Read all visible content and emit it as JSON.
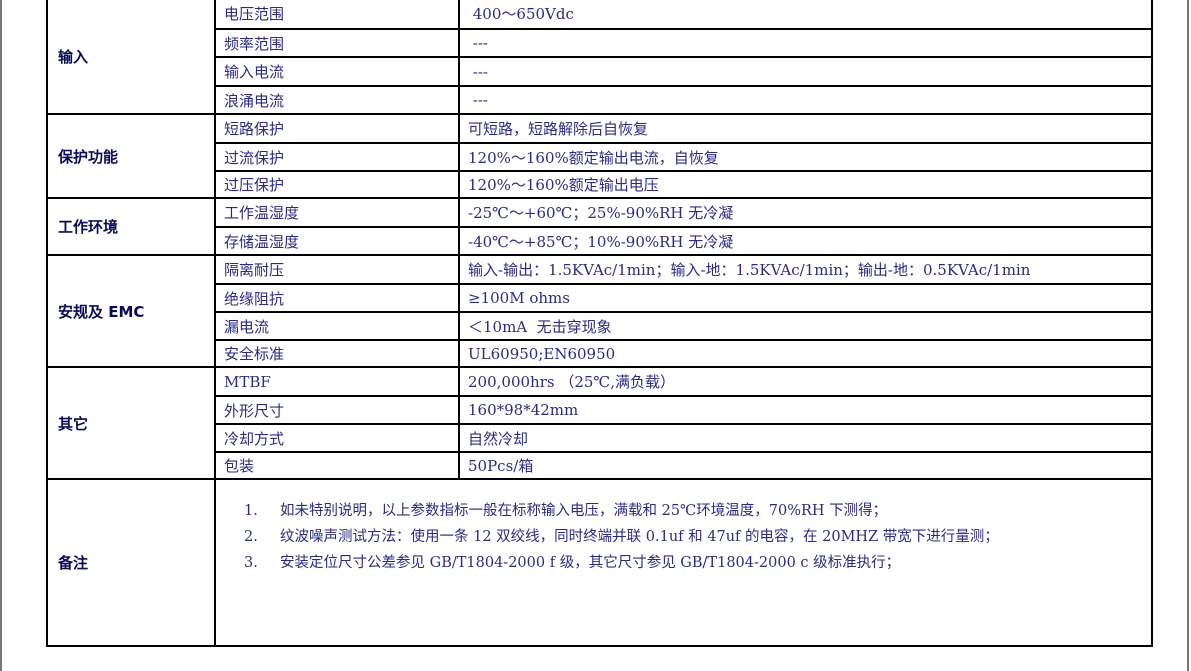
{
  "groups": [
    {
      "label": "输入",
      "rows": [
        {
          "item": "电压范围",
          "value": " 400～650Vdc"
        },
        {
          "item": "频率范围",
          "value": " ---"
        },
        {
          "item": "输入电流",
          "value": " ---"
        },
        {
          "item": "浪涌电流",
          "value": " ---"
        }
      ]
    },
    {
      "label": "保护功能",
      "rows": [
        {
          "item": "短路保护",
          "value": "可短路，短路解除后自恢复"
        },
        {
          "item": "过流保护",
          "value": "120%～160%额定输出电流，自恢复"
        },
        {
          "item": "过压保护",
          "value": "120%～160%额定输出电压"
        }
      ]
    },
    {
      "label": "工作环境",
      "rows": [
        {
          "item": "工作温湿度",
          "value": "-25℃～+60℃；25%-90%RH 无冷凝"
        },
        {
          "item": "存储温湿度",
          "value": "-40℃～+85℃；10%-90%RH 无冷凝"
        }
      ]
    },
    {
      "label": "安规及 EMC",
      "rows": [
        {
          "item": "隔离耐压",
          "value": "输入-输出：1.5KVAc/1min；输入-地：1.5KVAc/1min；输出-地：0.5KVAc/1min"
        },
        {
          "item": "绝缘阻抗",
          "value": "≥100M ohms"
        },
        {
          "item": "漏电流",
          "value": "＜10mA  无击穿现象"
        },
        {
          "item": "安全标准",
          "value": "UL60950;EN60950"
        }
      ]
    },
    {
      "label": "其它",
      "rows": [
        {
          "item": "MTBF",
          "value": "200,000hrs （25℃,满负载）"
        },
        {
          "item": "外形尺寸",
          "value": "160*98*42mm"
        },
        {
          "item": "冷却方式",
          "value": "自然冷却"
        },
        {
          "item": "包装",
          "value": "50Pcs/箱"
        }
      ]
    }
  ],
  "notes": {
    "label": "备注",
    "items": [
      {
        "num": "1.",
        "text": "如未特别说明，以上参数指标一般在标称输入电压，满载和 25℃环境温度，70%RH 下测得；"
      },
      {
        "num": "2.",
        "text": "纹波噪声测试方法：使用一条 12 双绞线，同时终端并联 0.1uf 和 47uf 的电容，在 20MHZ 带宽下进行量测；"
      },
      {
        "num": "3.",
        "text": "安装定位尺寸公差参见 GB/T1804-2000 f 级，其它尺寸参见 GB/T1804-2000 c 级标准执行；"
      }
    ]
  }
}
